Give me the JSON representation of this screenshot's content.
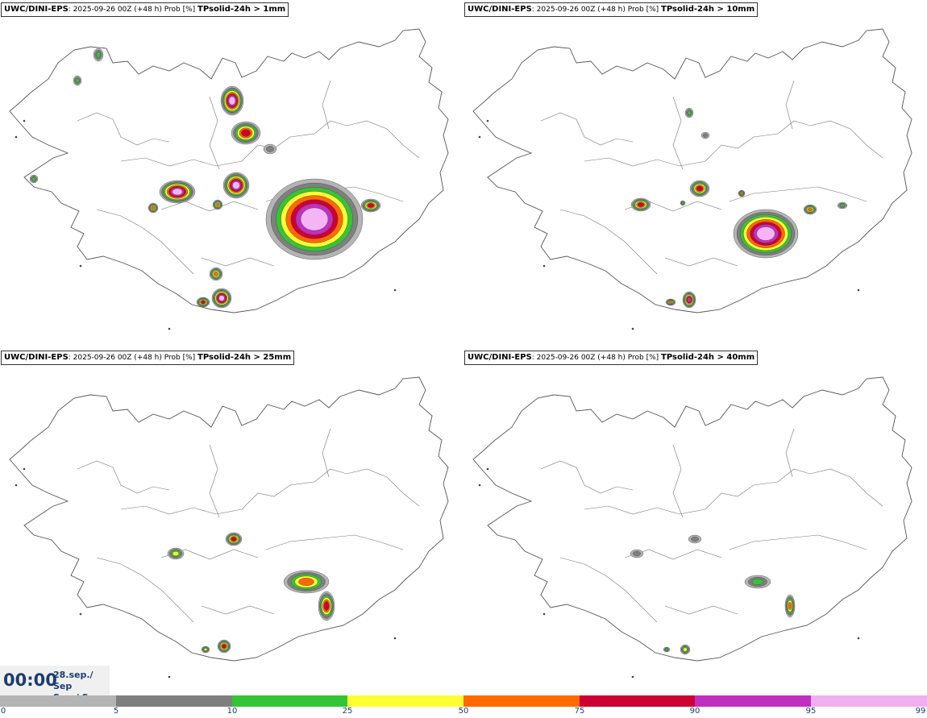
{
  "panels": [
    {
      "model": "UWC/DINI-EPS",
      "run": ": 2025-09-26 00Z (+48 h) Prob [%]",
      "threshold": "TPsolid-24h > 1mm"
    },
    {
      "model": "UWC/DINI-EPS",
      "run": ": 2025-09-26 00Z (+48 h) Prob [%]",
      "threshold": "TPsolid-24h > 10mm"
    },
    {
      "model": "UWC/DINI-EPS",
      "run": ": 2025-09-26 00Z (+48 h) Prob [%]",
      "threshold": "TPsolid-24h > 25mm"
    },
    {
      "model": "UWC/DINI-EPS",
      "run": ": 2025-09-26 00Z (+48 h) Prob [%]",
      "threshold": "TPsolid-24h > 40mm"
    }
  ],
  "valid_time": {
    "time": "00:00",
    "date_line1": "28.sep./ Sep",
    "date_line2": "Sun./ Sun"
  },
  "legend": {
    "ticks": [
      "0",
      "5",
      "10",
      "25",
      "50",
      "75",
      "90",
      "95",
      "99"
    ],
    "colors": [
      "#ffffff",
      "#b4b4b4",
      "#7f7f7f",
      "#35c435",
      "#ffff33",
      "#ff6a00",
      "#cc0033",
      "#c030c0",
      "#f0b0f0"
    ]
  },
  "map_colors": {
    "outline": "#555555",
    "gray_light": "#b4b4b4",
    "gray_dark": "#7f7f7f",
    "green": "#35c435",
    "yellow": "#ffff33",
    "orange": "#ff6a00",
    "red": "#cc0033",
    "magenta": "#c030c0",
    "pink": "#f5b4f5"
  }
}
